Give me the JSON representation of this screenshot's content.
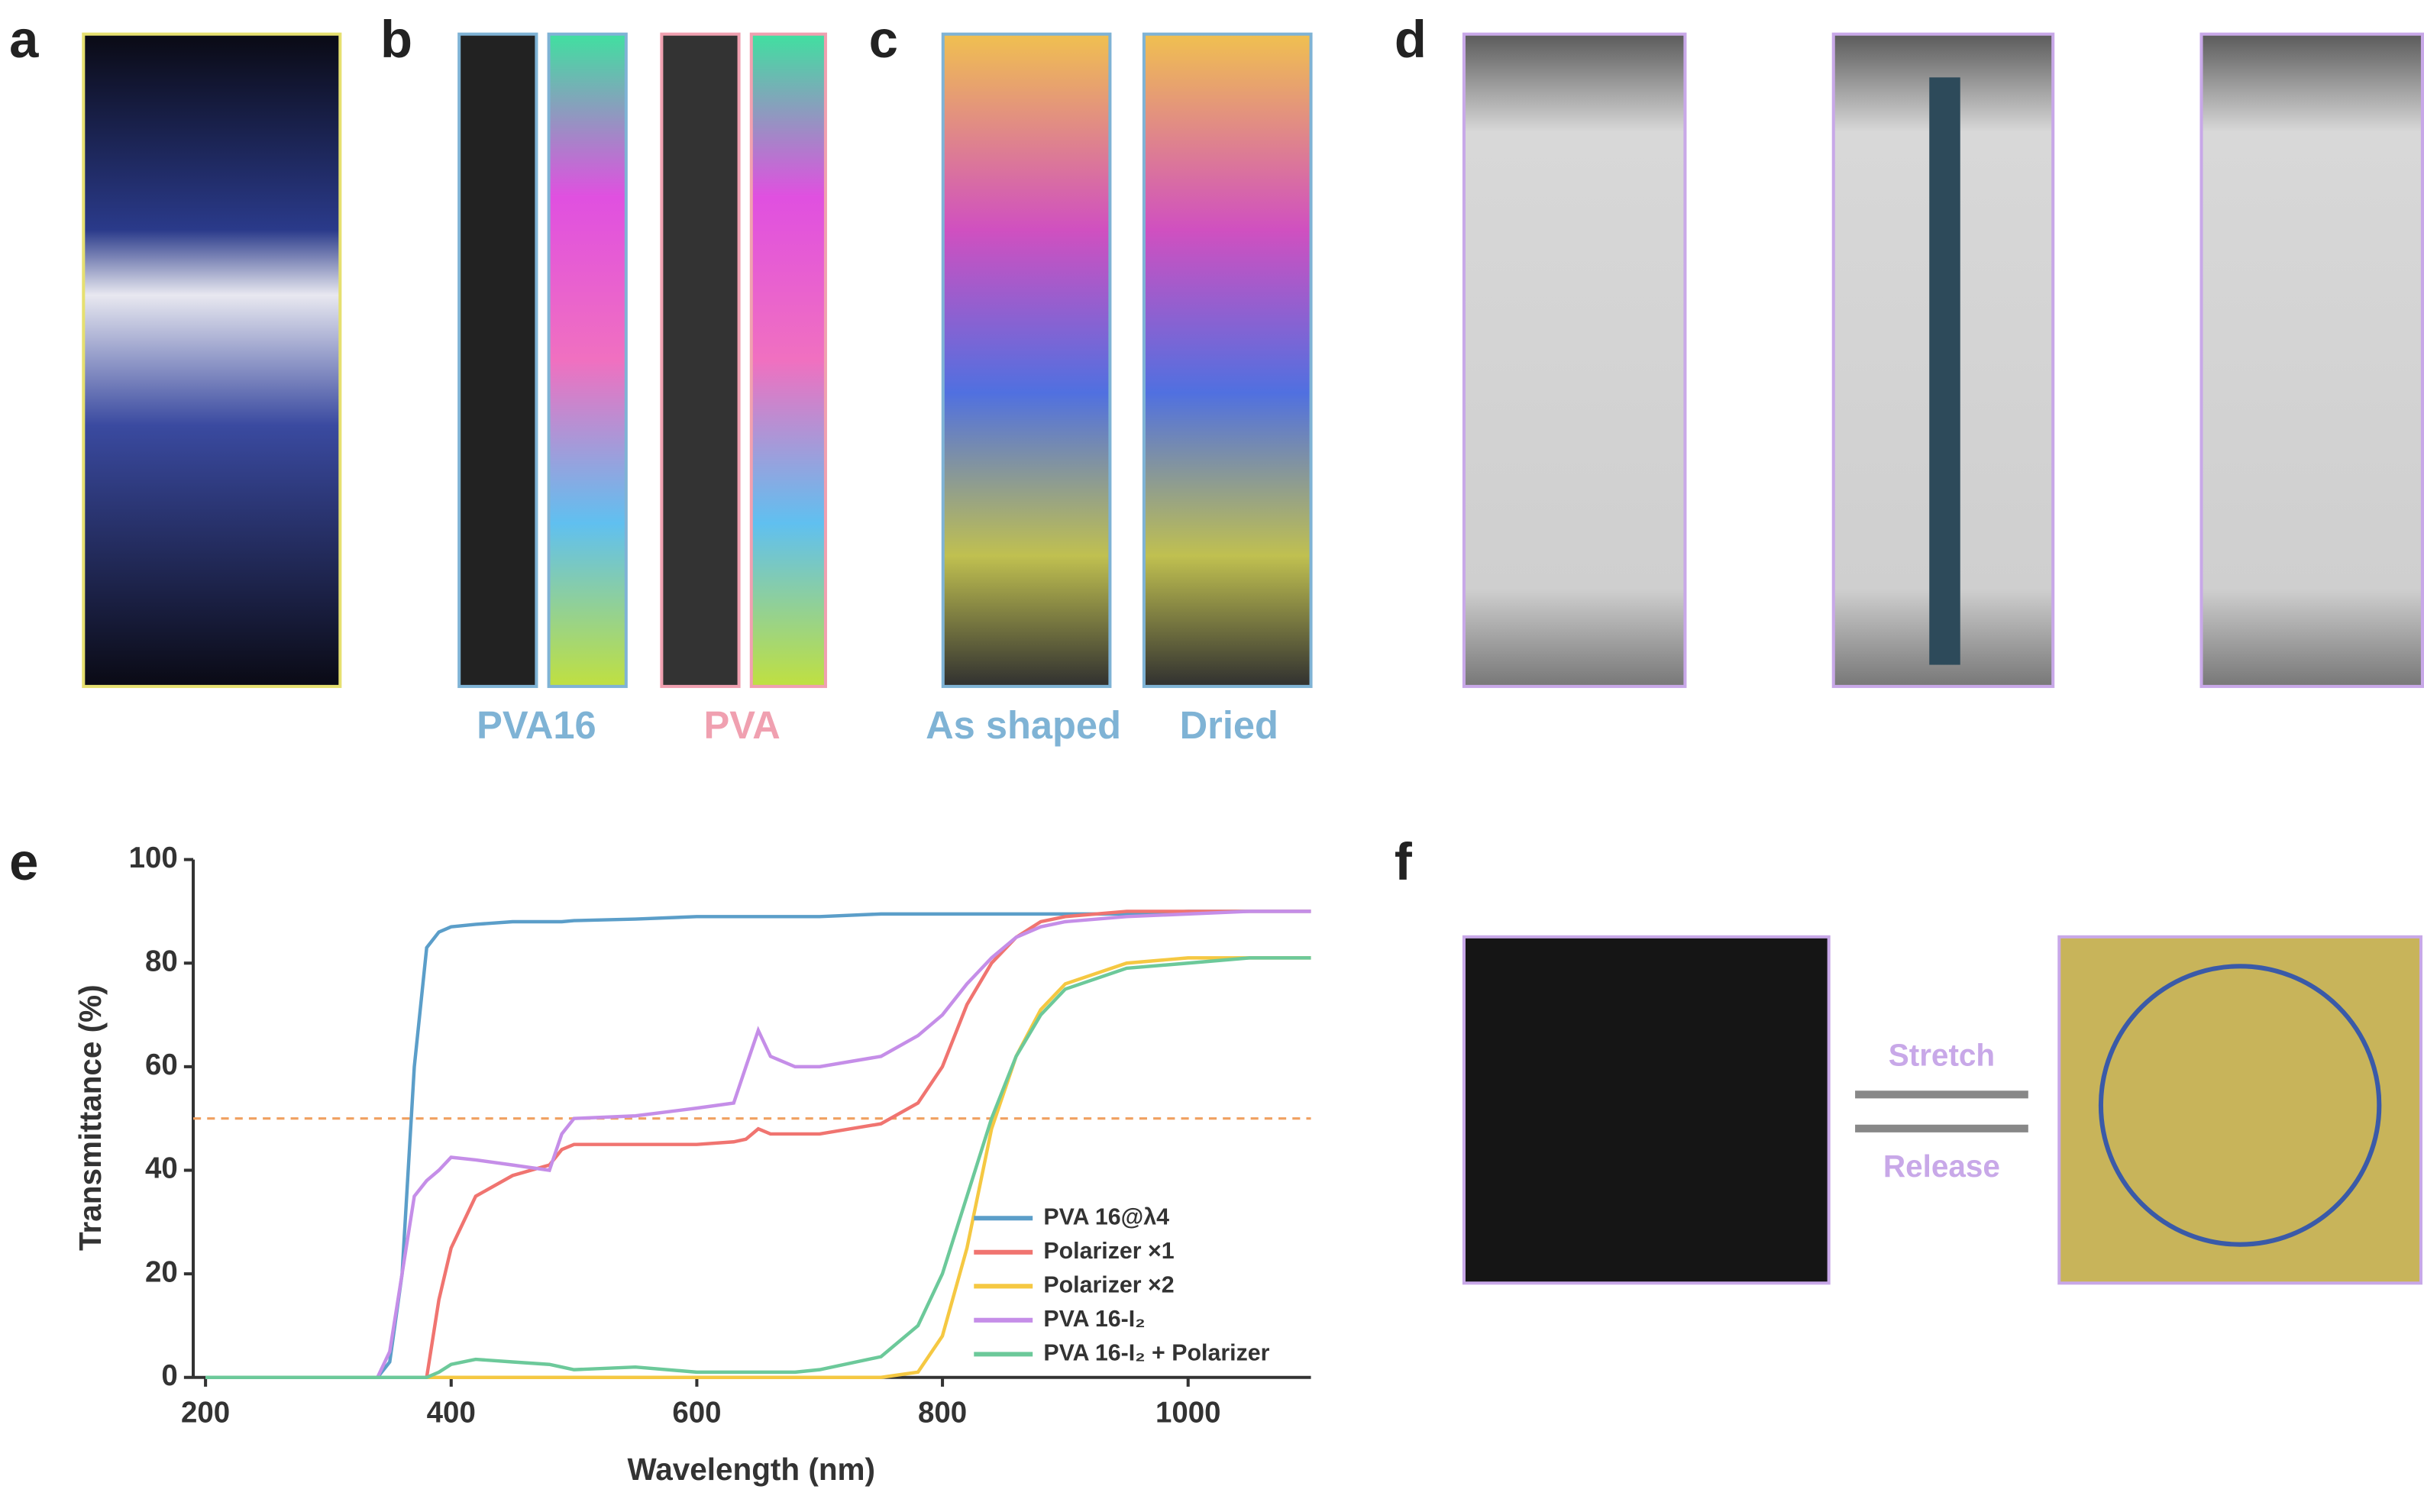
{
  "panels": {
    "labels": [
      "a",
      "b",
      "c",
      "d",
      "e",
      "f"
    ]
  },
  "captions": {
    "b": [
      "PVA16",
      "PVA"
    ],
    "c": [
      "As shaped",
      "Dried"
    ],
    "f": [
      "Stretch",
      "Release"
    ]
  },
  "chart_data": {
    "type": "line",
    "xlabel": "Wavelength (nm)",
    "ylabel": "Transmittance (%)",
    "xlim": [
      190,
      1100
    ],
    "ylim": [
      0,
      100
    ],
    "xticks": [
      200,
      400,
      600,
      800,
      1000
    ],
    "yticks": [
      0,
      20,
      40,
      60,
      80,
      100
    ],
    "reference_line": 50,
    "reference_color": "#f0a060",
    "legend": "lower right",
    "x": [
      200,
      300,
      340,
      350,
      360,
      370,
      380,
      390,
      400,
      420,
      450,
      480,
      490,
      500,
      550,
      600,
      630,
      640,
      650,
      660,
      680,
      700,
      750,
      780,
      800,
      820,
      840,
      860,
      880,
      900,
      950,
      1000,
      1050,
      1100
    ],
    "series": [
      {
        "name": "PVA 16@λ4",
        "color": "#5b9ec9",
        "values": [
          0,
          0,
          0,
          3,
          20,
          60,
          83,
          86,
          87,
          87.5,
          88,
          88,
          88,
          88.2,
          88.5,
          89,
          89,
          89,
          89,
          89,
          89,
          89,
          89.5,
          89.5,
          89.5,
          89.5,
          89.5,
          89.5,
          89.5,
          89.5,
          89.5,
          90,
          90,
          90
        ]
      },
      {
        "name": "Polarizer ×1",
        "color": "#f07470",
        "values": [
          0,
          0,
          0,
          0,
          0,
          0,
          0,
          15,
          25,
          35,
          39,
          41,
          44,
          45,
          45,
          45,
          45.5,
          46,
          48,
          47,
          47,
          47,
          49,
          53,
          60,
          72,
          80,
          85,
          88,
          89,
          90,
          90,
          90,
          90
        ]
      },
      {
        "name": "Polarizer ×2",
        "color": "#f5c842",
        "values": [
          0,
          0,
          0,
          0,
          0,
          0,
          0,
          0,
          0,
          0,
          0,
          0,
          0,
          0,
          0,
          0,
          0,
          0,
          0,
          0,
          0,
          0,
          0,
          1,
          8,
          25,
          48,
          62,
          71,
          76,
          80,
          81,
          81,
          81
        ]
      },
      {
        "name": "PVA 16-I₂",
        "color": "#c58ee8",
        "values": [
          0,
          0,
          0,
          5,
          20,
          35,
          38,
          40,
          42.5,
          42,
          41,
          40,
          47,
          50,
          50.5,
          52,
          53,
          60,
          67,
          62,
          60,
          60,
          62,
          66,
          70,
          76,
          81,
          85,
          87,
          88,
          89,
          89.5,
          90,
          90
        ]
      },
      {
        "name": "PVA 16-I₂ + Polarizer",
        "color": "#6cc99a",
        "values": [
          0,
          0,
          0,
          0,
          0,
          0,
          0,
          1,
          2.5,
          3.5,
          3,
          2.5,
          2,
          1.5,
          2,
          1,
          1,
          1,
          1,
          1,
          1,
          1.5,
          4,
          10,
          20,
          35,
          50,
          62,
          70,
          75,
          79,
          80,
          81,
          81
        ]
      }
    ]
  }
}
